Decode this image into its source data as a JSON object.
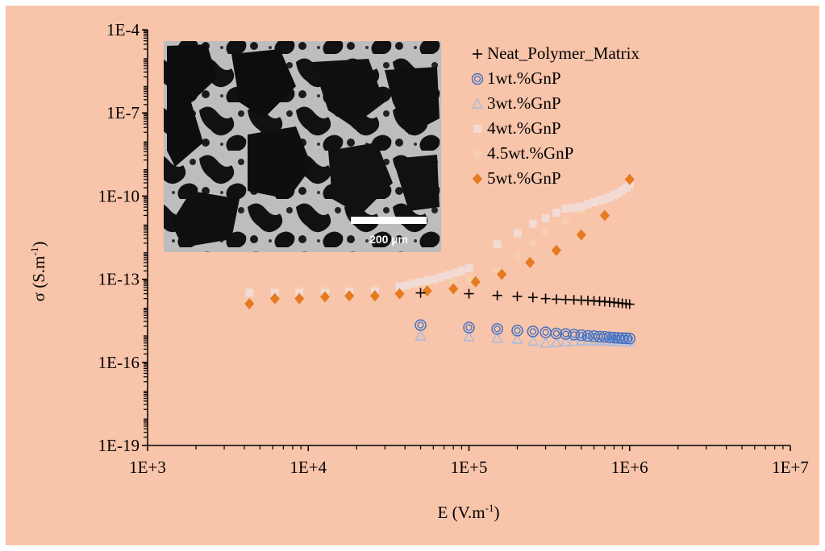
{
  "chart_data": {
    "type": "scatter",
    "x_scale": "log",
    "y_scale": "log",
    "xlabel": "E (V.m",
    "xlabel_sup": "-1",
    "xlabel_end": ")",
    "ylabel": "σ (S.m",
    "ylabel_sup": "-1",
    "ylabel_end": ")",
    "xlim": [
      1000,
      10000000
    ],
    "ylim": [
      1e-19,
      0.0001
    ],
    "x_ticks": [
      {
        "value": 1000,
        "label": "1E+3"
      },
      {
        "value": 10000,
        "label": "1E+4"
      },
      {
        "value": 100000,
        "label": "1E+5"
      },
      {
        "value": 1000000,
        "label": "1E+6"
      },
      {
        "value": 10000000,
        "label": "1E+7"
      }
    ],
    "y_ticks": [
      {
        "value": 1e-19,
        "label": "1E-19"
      },
      {
        "value": 1e-16,
        "label": "1E-16"
      },
      {
        "value": 1e-13,
        "label": "1E-13"
      },
      {
        "value": 1e-10,
        "label": "1E-10"
      },
      {
        "value": 1e-07,
        "label": "1E-7"
      },
      {
        "value": 0.0001,
        "label": "1E-4"
      }
    ],
    "grid": false,
    "legend_position": "top-right",
    "inset": {
      "scale_label": "200 µm"
    },
    "series": [
      {
        "name": "Neat_Polymer_Matrix",
        "marker": "plus",
        "color": "#000000",
        "x": [
          50000,
          100000,
          150000,
          200000,
          250000,
          300000,
          350000,
          400000,
          450000,
          500000,
          550000,
          600000,
          650000,
          700000,
          750000,
          800000,
          850000,
          900000,
          950000,
          1000000
        ],
        "y": [
          3.2e-14,
          3e-14,
          2.6e-14,
          2.4e-14,
          2.2e-14,
          2e-14,
          1.9e-14,
          1.85e-14,
          1.8e-14,
          1.75e-14,
          1.7e-14,
          1.65e-14,
          1.6e-14,
          1.55e-14,
          1.5e-14,
          1.45e-14,
          1.4e-14,
          1.35e-14,
          1.3e-14,
          1.25e-14
        ]
      },
      {
        "name": "1wt.%GnP",
        "marker": "double-circle",
        "color": "#4472c4",
        "x": [
          50000,
          100000,
          150000,
          200000,
          250000,
          300000,
          350000,
          400000,
          450000,
          500000,
          550000,
          600000,
          650000,
          700000,
          750000,
          800000,
          850000,
          900000,
          950000,
          1000000
        ],
        "y": [
          2.2e-15,
          1.8e-15,
          1.6e-15,
          1.4e-15,
          1.3e-15,
          1.2e-15,
          1.1e-15,
          1.05e-15,
          1e-15,
          9.5e-16,
          9e-16,
          8.8e-16,
          8.5e-16,
          8.3e-16,
          8e-16,
          7.8e-16,
          7.6e-16,
          7.5e-16,
          7.4e-16,
          7.2e-16
        ]
      },
      {
        "name": "3wt.%GnP",
        "marker": "triangle",
        "color": "#a9bce0",
        "x": [
          50000,
          100000,
          150000,
          200000,
          250000,
          300000,
          350000,
          400000,
          450000,
          500000,
          550000,
          600000,
          650000,
          700000,
          750000,
          800000,
          850000,
          900000,
          950000,
          1000000
        ],
        "y": [
          9e-16,
          8.5e-16,
          7.5e-16,
          6.8e-16,
          5.8e-16,
          5e-16,
          5.2e-16,
          5.5e-16,
          5.8e-16,
          6e-16,
          6e-16,
          6e-16,
          5.8e-16,
          5.8e-16,
          5.8e-16,
          5.6e-16,
          5.6e-16,
          5.6e-16,
          5.5e-16,
          5.5e-16
        ]
      },
      {
        "name": "4wt.%GnP",
        "marker": "square",
        "color": "#f2dbd4",
        "x": [
          4300,
          6200,
          8800,
          12700,
          18000,
          26000,
          37000,
          41000,
          45000,
          50000,
          55000,
          61000,
          67000,
          74000,
          82000,
          90000,
          100000,
          150000,
          200000,
          250000,
          300000,
          350000,
          400000,
          450000,
          500000,
          550000,
          600000,
          650000,
          700000,
          750000,
          800000,
          850000,
          900000,
          950000,
          1000000
        ],
        "y": [
          3.2e-14,
          3.2e-14,
          3.2e-14,
          3.2e-14,
          3.3e-14,
          3.6e-14,
          5.5e-14,
          6e-14,
          7e-14,
          8e-14,
          9e-14,
          1e-13,
          1.2e-13,
          1.4e-13,
          1.7e-13,
          2e-13,
          2.5e-13,
          1.8e-12,
          4.5e-12,
          1e-11,
          1.6e-11,
          2.5e-11,
          3.5e-11,
          3.8e-11,
          4.2e-11,
          5e-11,
          6e-11,
          7e-11,
          8e-11,
          9e-11,
          1.1e-10,
          1.3e-10,
          1.6e-10,
          2e-10,
          2.5e-10
        ]
      },
      {
        "name": "4.5wt.%GnP",
        "marker": "circle",
        "color": "#f5d0a8",
        "x": [
          4300,
          6200,
          8800,
          12700,
          18000,
          26000,
          37000,
          55000,
          80000,
          100000,
          150000,
          200000,
          250000,
          300000,
          400000,
          500000,
          700000,
          1000000
        ],
        "y": [
          3.5e-14,
          3.6e-14,
          4e-14,
          4.2e-14,
          4.5e-14,
          4.5e-14,
          5e-14,
          6e-14,
          8e-14,
          1e-13,
          2e-13,
          7e-13,
          2e-12,
          5e-12,
          1.2e-11,
          3e-11,
          7e-11,
          2e-10
        ]
      },
      {
        "name": "5wt.%GnP",
        "marker": "diamond",
        "color": "#e57a1f",
        "x": [
          4300,
          6200,
          8800,
          12700,
          18000,
          26000,
          37000,
          55000,
          80000,
          110000,
          160000,
          240000,
          350000,
          500000,
          700000,
          1000000
        ],
        "y": [
          1.3e-14,
          2e-14,
          2e-14,
          2.3e-14,
          2.5e-14,
          2.5e-14,
          3e-14,
          3.8e-14,
          4.5e-14,
          8e-14,
          1.5e-13,
          4e-13,
          1.1e-12,
          4e-12,
          2e-11,
          4e-10
        ]
      }
    ]
  }
}
